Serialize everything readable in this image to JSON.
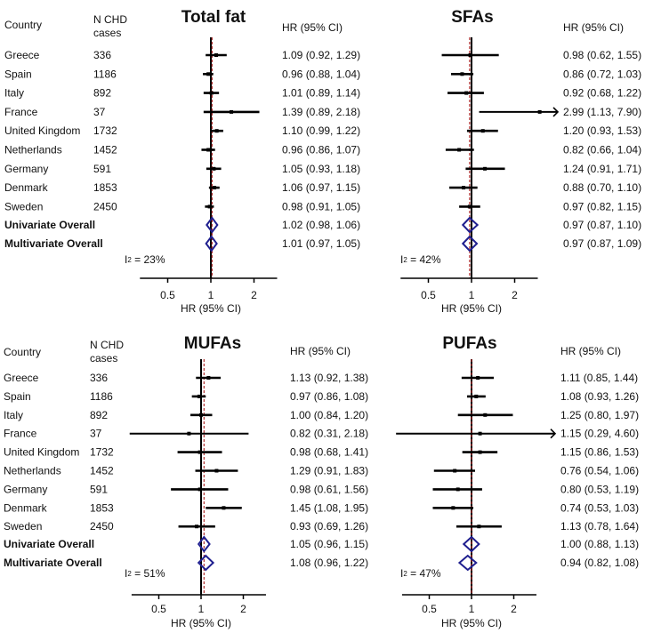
{
  "common": {
    "country_header": "Country",
    "n_header_line1": "N CHD",
    "n_header_line2": "cases",
    "hr_header": "HR (95% CI)",
    "axis_label": "HR (95% CI)",
    "i2_symbol": "I",
    "i2_index": "2",
    "i2_eq": " = ",
    "countries": [
      "Greece",
      "Spain",
      "Italy",
      "France",
      "United Kingdom",
      "Netherlands",
      "Germany",
      "Denmark",
      "Sweden"
    ],
    "n_cases": [
      "336",
      "1186",
      "892",
      "37",
      "1732",
      "1452",
      "591",
      "1853",
      "2450"
    ],
    "overall_labels": [
      "Univariate Overall",
      "Multivariate Overall"
    ],
    "colors": {
      "estimate": "#000000",
      "diamond": "#1f1f8f",
      "reference_dashed": "#b03030"
    }
  },
  "chart_data": [
    {
      "type": "forest",
      "title": "Total fat",
      "xlabel": "HR (95% CI)",
      "xscale": "log",
      "xticks": [
        0.5,
        1,
        2
      ],
      "xtick_labels": [
        "0.5",
        "1",
        "2"
      ],
      "xlim": [
        0.32,
        2.9
      ],
      "i2": "23%",
      "rows": [
        {
          "hr": 1.09,
          "lo": 0.92,
          "hi": 1.29,
          "label": "1.09 (0.92, 1.29)"
        },
        {
          "hr": 0.96,
          "lo": 0.88,
          "hi": 1.04,
          "label": "0.96 (0.88, 1.04)"
        },
        {
          "hr": 1.01,
          "lo": 0.89,
          "hi": 1.14,
          "label": "1.01 (0.89, 1.14)"
        },
        {
          "hr": 1.39,
          "lo": 0.89,
          "hi": 2.18,
          "label": "1.39 (0.89, 2.18)"
        },
        {
          "hr": 1.1,
          "lo": 0.99,
          "hi": 1.22,
          "label": "1.10 (0.99, 1.22)"
        },
        {
          "hr": 0.96,
          "lo": 0.86,
          "hi": 1.07,
          "label": "0.96 (0.86, 1.07)"
        },
        {
          "hr": 1.05,
          "lo": 0.93,
          "hi": 1.18,
          "label": "1.05 (0.93, 1.18)"
        },
        {
          "hr": 1.06,
          "lo": 0.97,
          "hi": 1.15,
          "label": "1.06 (0.97, 1.15)"
        },
        {
          "hr": 0.98,
          "lo": 0.91,
          "hi": 1.05,
          "label": "0.98 (0.91, 1.05)"
        }
      ],
      "overall": [
        {
          "hr": 1.02,
          "lo": 0.98,
          "hi": 1.06,
          "label": "1.02 (0.98, 1.06)"
        },
        {
          "hr": 1.01,
          "lo": 0.97,
          "hi": 1.05,
          "label": "1.01 (0.97, 1.05)"
        }
      ]
    },
    {
      "type": "forest",
      "title": "SFAs",
      "xlabel": "HR (95% CI)",
      "xscale": "log",
      "xticks": [
        0.5,
        1,
        2
      ],
      "xtick_labels": [
        "0.5",
        "1",
        "2"
      ],
      "xlim": [
        0.32,
        2.9
      ],
      "i2": "42%",
      "rows": [
        {
          "hr": 0.98,
          "lo": 0.62,
          "hi": 1.55,
          "label": "0.98 (0.62, 1.55)"
        },
        {
          "hr": 0.86,
          "lo": 0.72,
          "hi": 1.03,
          "label": "0.86 (0.72, 1.03)"
        },
        {
          "hr": 0.92,
          "lo": 0.68,
          "hi": 1.22,
          "label": "0.92 (0.68, 1.22)"
        },
        {
          "hr": 2.99,
          "lo": 1.13,
          "hi": 7.9,
          "label": "2.99 (1.13, 7.90)"
        },
        {
          "hr": 1.2,
          "lo": 0.93,
          "hi": 1.53,
          "label": "1.20 (0.93, 1.53)"
        },
        {
          "hr": 0.82,
          "lo": 0.66,
          "hi": 1.04,
          "label": "0.82 (0.66, 1.04)"
        },
        {
          "hr": 1.24,
          "lo": 0.91,
          "hi": 1.71,
          "label": "1.24 (0.91, 1.71)"
        },
        {
          "hr": 0.88,
          "lo": 0.7,
          "hi": 1.1,
          "label": "0.88 (0.70, 1.10)"
        },
        {
          "hr": 0.97,
          "lo": 0.82,
          "hi": 1.15,
          "label": "0.97 (0.82, 1.15)"
        }
      ],
      "overall": [
        {
          "hr": 0.97,
          "lo": 0.87,
          "hi": 1.1,
          "label": "0.97 (0.87, 1.10)"
        },
        {
          "hr": 0.97,
          "lo": 0.87,
          "hi": 1.09,
          "label": "0.97 (0.87, 1.09)"
        }
      ]
    },
    {
      "type": "forest",
      "title": "MUFAs",
      "xlabel": "HR (95% CI)",
      "xscale": "log",
      "xticks": [
        0.5,
        1,
        2
      ],
      "xtick_labels": [
        "0.5",
        "1",
        "2"
      ],
      "xlim": [
        0.32,
        2.9
      ],
      "i2": "51%",
      "rows": [
        {
          "hr": 1.13,
          "lo": 0.92,
          "hi": 1.38,
          "label": "1.13 (0.92, 1.38)"
        },
        {
          "hr": 0.97,
          "lo": 0.86,
          "hi": 1.08,
          "label": "0.97 (0.86, 1.08)"
        },
        {
          "hr": 1.0,
          "lo": 0.84,
          "hi": 1.2,
          "label": "1.00 (0.84, 1.20)"
        },
        {
          "hr": 0.82,
          "lo": 0.31,
          "hi": 2.18,
          "label": "0.82 (0.31, 2.18)"
        },
        {
          "hr": 0.98,
          "lo": 0.68,
          "hi": 1.41,
          "label": "0.98 (0.68, 1.41)"
        },
        {
          "hr": 1.29,
          "lo": 0.91,
          "hi": 1.83,
          "label": "1.29 (0.91, 1.83)"
        },
        {
          "hr": 0.98,
          "lo": 0.61,
          "hi": 1.56,
          "label": "0.98 (0.61, 1.56)"
        },
        {
          "hr": 1.45,
          "lo": 1.08,
          "hi": 1.95,
          "label": "1.45 (1.08, 1.95)"
        },
        {
          "hr": 0.93,
          "lo": 0.69,
          "hi": 1.26,
          "label": "0.93 (0.69, 1.26)"
        }
      ],
      "overall": [
        {
          "hr": 1.05,
          "lo": 0.96,
          "hi": 1.15,
          "label": "1.05 (0.96, 1.15)"
        },
        {
          "hr": 1.08,
          "lo": 0.96,
          "hi": 1.22,
          "label": "1.08 (0.96, 1.22)"
        }
      ]
    },
    {
      "type": "forest",
      "title": "PUFAs",
      "xlabel": "HR (95% CI)",
      "xscale": "log",
      "xticks": [
        0.5,
        1,
        2
      ],
      "xtick_labels": [
        "0.5",
        "1",
        "2"
      ],
      "xlim": [
        0.32,
        2.9
      ],
      "i2": "47%",
      "rows": [
        {
          "hr": 1.11,
          "lo": 0.85,
          "hi": 1.44,
          "label": "1.11 (0.85, 1.44)"
        },
        {
          "hr": 1.08,
          "lo": 0.93,
          "hi": 1.26,
          "label": "1.08 (0.93, 1.26)"
        },
        {
          "hr": 1.25,
          "lo": 0.8,
          "hi": 1.97,
          "label": "1.25 (0.80, 1.97)"
        },
        {
          "hr": 1.15,
          "lo": 0.29,
          "hi": 4.6,
          "label": "1.15 (0.29, 4.60)"
        },
        {
          "hr": 1.15,
          "lo": 0.86,
          "hi": 1.53,
          "label": "1.15 (0.86, 1.53)"
        },
        {
          "hr": 0.76,
          "lo": 0.54,
          "hi": 1.06,
          "label": "0.76 (0.54, 1.06)"
        },
        {
          "hr": 0.8,
          "lo": 0.53,
          "hi": 1.19,
          "label": "0.80 (0.53, 1.19)"
        },
        {
          "hr": 0.74,
          "lo": 0.53,
          "hi": 1.03,
          "label": "0.74 (0.53, 1.03)"
        },
        {
          "hr": 1.13,
          "lo": 0.78,
          "hi": 1.64,
          "label": "1.13 (0.78, 1.64)"
        }
      ],
      "overall": [
        {
          "hr": 1.0,
          "lo": 0.88,
          "hi": 1.13,
          "label": "1.00 (0.88, 1.13)"
        },
        {
          "hr": 0.94,
          "lo": 0.82,
          "hi": 1.08,
          "label": "0.94 (0.82, 1.08)"
        }
      ]
    }
  ]
}
